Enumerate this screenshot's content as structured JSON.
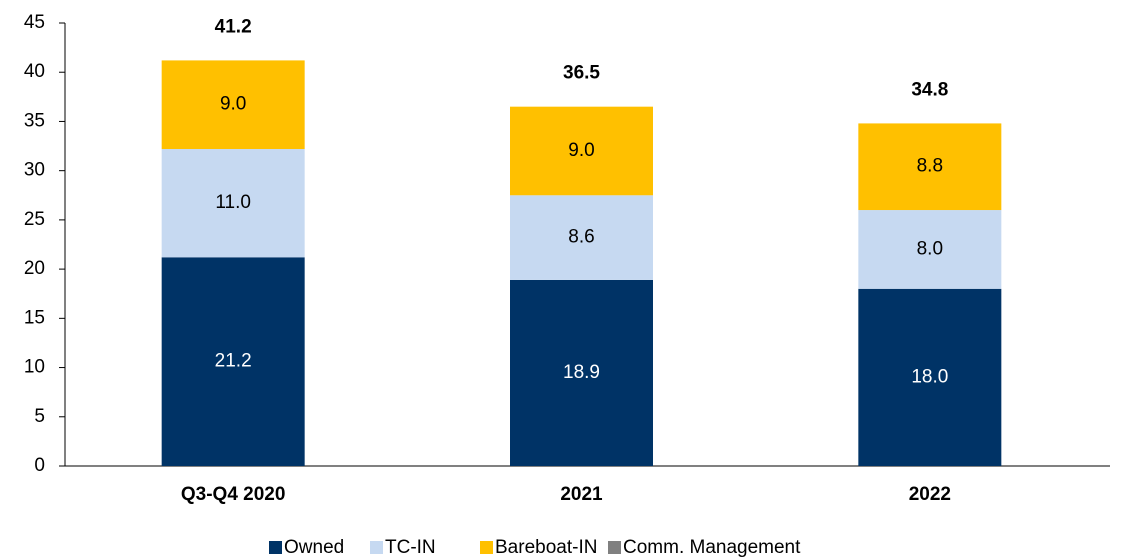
{
  "chart_data": {
    "type": "stacked_bar",
    "categories": [
      "Q3-Q4 2020",
      "2021",
      "2022"
    ],
    "series": [
      {
        "name": "Owned",
        "color": "#003366",
        "values": [
          21.2,
          18.9,
          18.0
        ],
        "value_labels": [
          "21.2",
          "18.9",
          "18.0"
        ]
      },
      {
        "name": "TC-IN",
        "color": "#c6d9f1",
        "values": [
          11.0,
          8.6,
          8.0
        ],
        "value_labels": [
          "11.0",
          "8.6",
          "8.0"
        ]
      },
      {
        "name": "Bareboat-IN",
        "color": "#ffc000",
        "values": [
          9.0,
          9.0,
          8.8
        ],
        "value_labels": [
          "9.0",
          "9.0",
          "8.8"
        ]
      },
      {
        "name": "Comm. Management",
        "color": "#808080",
        "values": [
          0,
          0,
          0
        ]
      }
    ],
    "totals": [
      41.2,
      36.5,
      34.8
    ],
    "ylim": [
      0,
      45
    ],
    "yticks": [
      0,
      5,
      10,
      15,
      20,
      25,
      30,
      35,
      40,
      45
    ],
    "grid": false,
    "legend": "bottom"
  }
}
